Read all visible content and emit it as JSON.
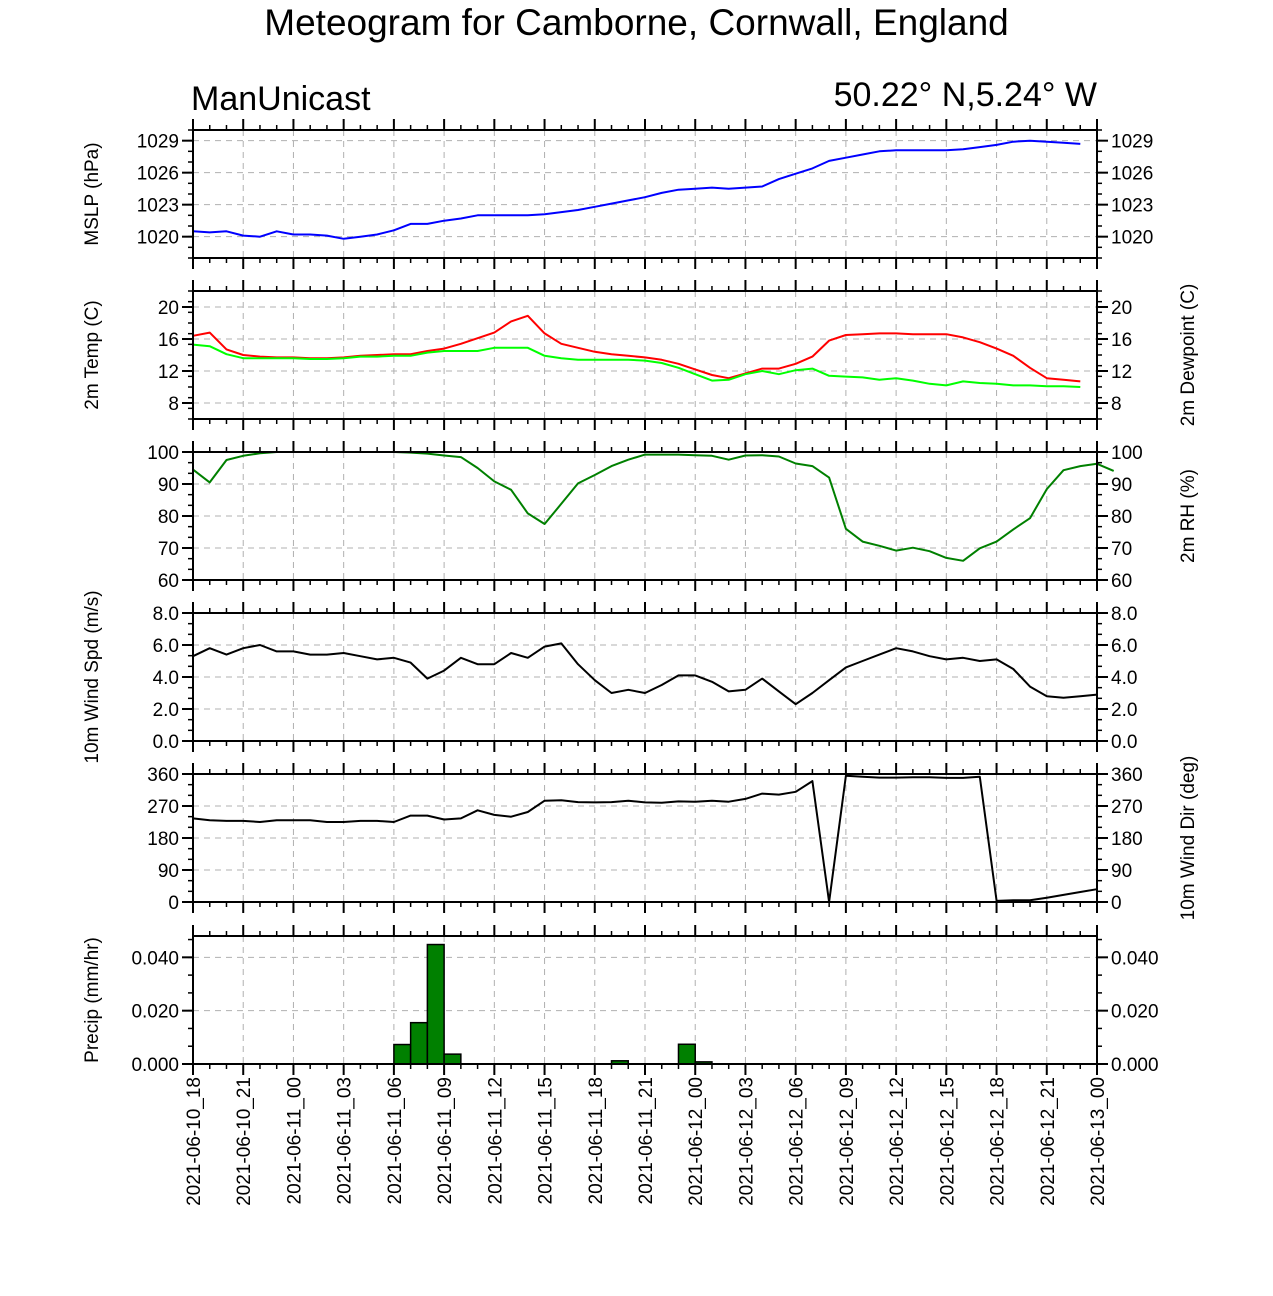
{
  "title": "Meteogram for Camborne, Cornwall, England",
  "model": "ManUnicast",
  "location": "50.22° N,5.24° W",
  "colors": {
    "mslp": "#0000ff",
    "temp": "#ff0000",
    "dewpoint": "#00ff00",
    "rh": "#008000",
    "wind": "#000000",
    "precip_fill": "#008000",
    "grid": "#b0b0b0"
  },
  "chart_data": [
    {
      "type": "line",
      "panel": "mslp",
      "ylabel": "MSLP (hPa)",
      "ylim": [
        1018,
        1030
      ],
      "yticks": [
        1020,
        1023,
        1026,
        1029
      ],
      "ytick_labels": [
        "1020",
        "1023",
        "1026",
        "1029"
      ],
      "right_ticks": true,
      "grid": true,
      "x_start_hour": 0,
      "x_step_hours": 1,
      "series": [
        {
          "color_key": "mslp",
          "values": [
            1020.5,
            1020.4,
            1020.5,
            1020.1,
            1020.0,
            1020.5,
            1020.2,
            1020.2,
            1020.1,
            1019.8,
            1020.0,
            1020.2,
            1020.6,
            1021.2,
            1021.2,
            1021.5,
            1021.7,
            1022.0,
            1022.0,
            1022.0,
            1022.0,
            1022.1,
            1022.3,
            1022.5,
            1022.8,
            1023.1,
            1023.4,
            1023.7,
            1024.1,
            1024.4,
            1024.5,
            1024.6,
            1024.5,
            1024.6,
            1024.7,
            1025.4,
            1025.9,
            1026.4,
            1027.1,
            1027.4,
            1027.7,
            1028.0,
            1028.1,
            1028.1,
            1028.1,
            1028.1,
            1028.2,
            1028.4,
            1028.6,
            1028.9,
            1029.0,
            1028.9,
            1028.8,
            1028.7
          ]
        }
      ]
    },
    {
      "type": "line",
      "panel": "temp",
      "ylabel": "2m Temp (C)",
      "ylabel_right": "2m Dewpoint (C)",
      "ylim": [
        6,
        22
      ],
      "yticks": [
        8,
        12,
        16,
        20
      ],
      "ytick_labels": [
        "8",
        "12",
        "16",
        "20"
      ],
      "grid": true,
      "x_start_hour": 0,
      "x_step_hours": 1,
      "series": [
        {
          "color_key": "temp",
          "values": [
            16.4,
            16.8,
            14.7,
            14.0,
            13.8,
            13.7,
            13.7,
            13.6,
            13.6,
            13.7,
            13.9,
            14.0,
            14.1,
            14.1,
            14.5,
            14.8,
            15.4,
            16.1,
            16.8,
            18.2,
            18.9,
            16.7,
            15.4,
            14.9,
            14.4,
            14.1,
            13.9,
            13.7,
            13.4,
            12.9,
            12.2,
            11.5,
            11.1,
            11.7,
            12.3,
            12.3,
            12.9,
            13.8,
            15.8,
            16.5,
            16.6,
            16.7,
            16.7,
            16.6,
            16.6,
            16.6,
            16.2,
            15.6,
            14.8,
            13.9,
            12.4,
            11.1,
            10.9,
            10.7
          ]
        },
        {
          "color_key": "dewpoint",
          "values": [
            15.3,
            15.1,
            14.1,
            13.6,
            13.6,
            13.6,
            13.6,
            13.5,
            13.5,
            13.6,
            13.8,
            13.8,
            13.9,
            13.9,
            14.3,
            14.5,
            14.5,
            14.5,
            14.9,
            14.9,
            14.9,
            13.9,
            13.6,
            13.4,
            13.4,
            13.4,
            13.4,
            13.3,
            13.0,
            12.4,
            11.6,
            10.8,
            10.9,
            11.6,
            12.0,
            11.6,
            12.1,
            12.3,
            11.4,
            11.3,
            11.2,
            10.9,
            11.1,
            10.8,
            10.4,
            10.2,
            10.7,
            10.5,
            10.4,
            10.2,
            10.2,
            10.1,
            10.1,
            10.0
          ]
        }
      ]
    },
    {
      "type": "line",
      "panel": "rh",
      "ylabel_right": "2m RH (%)",
      "ylim": [
        60,
        100
      ],
      "yticks": [
        60,
        70,
        80,
        90,
        100
      ],
      "ytick_labels": [
        "60",
        "70",
        "80",
        "90",
        "100"
      ],
      "grid": true,
      "x_start_hour": 0,
      "x_step_hours": 1,
      "series": [
        {
          "color_key": "rh",
          "values": [
            94.5,
            90.5,
            97.5,
            98.8,
            99.6,
            100,
            100,
            100,
            100,
            100,
            100,
            100,
            100,
            99.8,
            99.5,
            98.9,
            98.4,
            95,
            90.8,
            88.2,
            80.8,
            77.5,
            83.8,
            90.2,
            92.8,
            95.6,
            97.6,
            99.2,
            99.2,
            99.2,
            99,
            98.8,
            97.6,
            98.9,
            99,
            98.6,
            96.4,
            95.6,
            92,
            76,
            72,
            70.7,
            69.2,
            70.1,
            69,
            66.9,
            66,
            69.9,
            72,
            75.8,
            79.3,
            88.4,
            94.3,
            95.6,
            96.3,
            94.1
          ]
        }
      ]
    },
    {
      "type": "line",
      "panel": "wind_speed",
      "ylabel": "10m Wind Spd (m/s)",
      "ylim": [
        0,
        8
      ],
      "yticks": [
        0,
        2,
        4,
        6,
        8
      ],
      "ytick_labels": [
        "0.0",
        "2.0",
        "4.0",
        "6.0",
        "8.0"
      ],
      "grid": true,
      "x_start_hour": 0,
      "x_step_hours": 1,
      "series": [
        {
          "color_key": "wind",
          "values": [
            5.3,
            5.8,
            5.4,
            5.8,
            6.0,
            5.6,
            5.6,
            5.4,
            5.4,
            5.5,
            5.3,
            5.1,
            5.2,
            4.9,
            3.9,
            4.4,
            5.2,
            4.8,
            4.8,
            5.5,
            5.2,
            5.9,
            6.1,
            4.8,
            3.8,
            3.0,
            3.2,
            3.0,
            3.5,
            4.1,
            4.1,
            3.7,
            3.1,
            3.2,
            3.9,
            3.1,
            2.3,
            3.0,
            3.8,
            4.6,
            5.0,
            5.4,
            5.8,
            5.6,
            5.3,
            5.1,
            5.2,
            5.0,
            5.1,
            4.5,
            3.4,
            2.8,
            2.7,
            2.8,
            2.9
          ]
        }
      ]
    },
    {
      "type": "line",
      "panel": "wind_dir",
      "ylabel_right": "10m Wind Dir (deg)",
      "ylim": [
        0,
        360
      ],
      "yticks": [
        0,
        90,
        180,
        270,
        360
      ],
      "ytick_labels": [
        "0",
        "90",
        "180",
        "270",
        "360"
      ],
      "grid": true,
      "x_start_hour": 0,
      "x_step_hours": 1,
      "series": [
        {
          "color_key": "wind",
          "values": [
            235,
            230,
            228,
            228,
            225,
            230,
            230,
            230,
            225,
            225,
            228,
            228,
            225,
            243,
            243,
            232,
            235,
            258,
            245,
            240,
            253,
            285,
            286,
            281,
            280,
            281,
            285,
            280,
            279,
            283,
            282,
            285,
            282,
            290,
            305,
            302,
            310,
            340,
            0,
            355,
            352,
            350,
            350,
            351,
            351,
            349,
            349,
            352,
            3,
            5,
            5,
            12,
            20,
            28,
            36
          ]
        }
      ]
    },
    {
      "type": "bar",
      "panel": "precip",
      "ylabel": "Precip (mm/hr)",
      "ylim": [
        0,
        0.048
      ],
      "yticks": [
        0,
        0.02,
        0.04
      ],
      "ytick_labels": [
        "0.000",
        "0.020",
        "0.040"
      ],
      "grid": true,
      "x_start_hour": 0,
      "x_step_hours": 1,
      "series": [
        {
          "color_key": "precip_fill",
          "values": [
            0,
            0,
            0,
            0,
            0,
            0,
            0,
            0,
            0,
            0,
            0,
            0,
            0.0073,
            0.0155,
            0.0448,
            0.0037,
            0,
            0,
            0,
            0,
            0,
            0,
            0,
            0,
            0,
            0.0012,
            0,
            0,
            0,
            0.0074,
            0.0008,
            0,
            0,
            0,
            0,
            0,
            0,
            0,
            0,
            0,
            0,
            0,
            0,
            0,
            0,
            0,
            0,
            0,
            0,
            0,
            0,
            0,
            0,
            0
          ]
        }
      ]
    }
  ],
  "x_axis": {
    "range_hours": [
      0,
      54
    ],
    "tick_step_hours": 3,
    "tick_labels": [
      "2021-06-10_18",
      "2021-06-10_21",
      "2021-06-11_00",
      "2021-06-11_03",
      "2021-06-11_06",
      "2021-06-11_09",
      "2021-06-11_12",
      "2021-06-11_15",
      "2021-06-11_18",
      "2021-06-11_21",
      "2021-06-12_00",
      "2021-06-12_03",
      "2021-06-12_06",
      "2021-06-12_09",
      "2021-06-12_12",
      "2021-06-12_15",
      "2021-06-12_18",
      "2021-06-12_21",
      "2021-06-13_00"
    ]
  }
}
